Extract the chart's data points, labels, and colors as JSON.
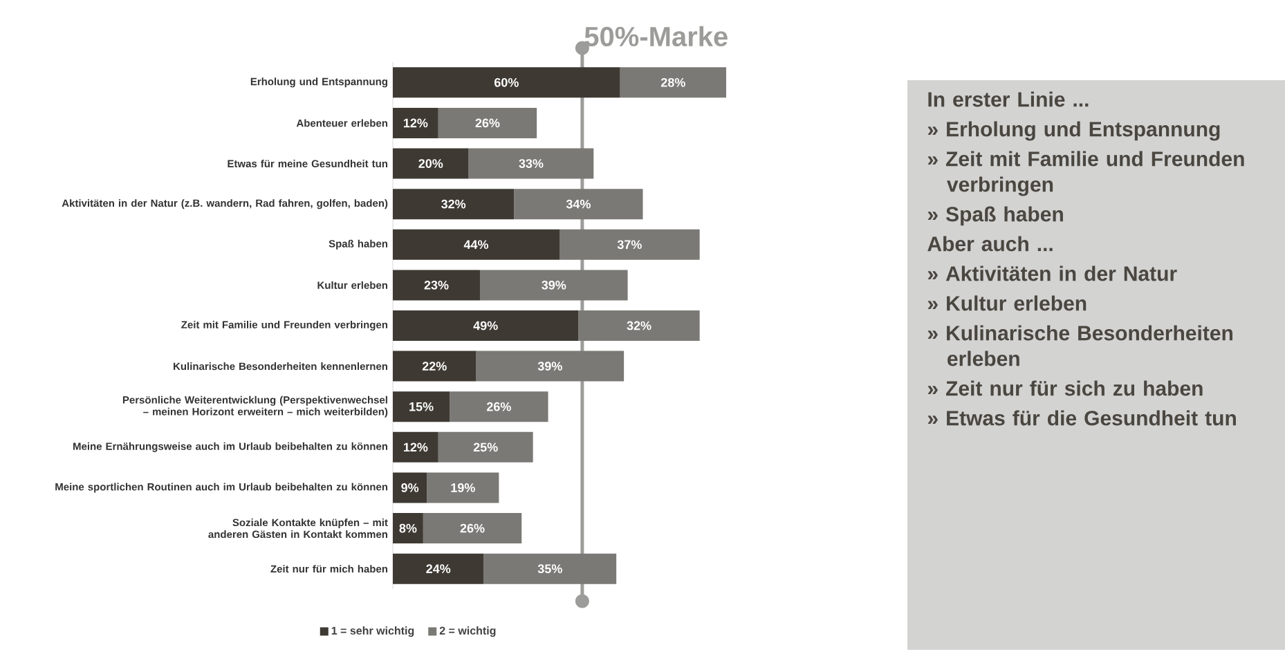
{
  "chart_data": {
    "type": "bar",
    "orientation": "horizontal",
    "stacked": true,
    "categories": [
      "Erholung und Entspannung",
      "Abenteuer erleben",
      "Etwas für meine Gesundheit tun",
      "Aktivitäten in der Natur (z.B. wandern, Rad fahren, golfen, baden)",
      "Spaß haben",
      "Kultur erleben",
      "Zeit mit Familie und Freunden verbringen",
      "Kulinarische Besonderheiten kennenlernen",
      "Persönliche Weiterentwicklung (Perspektivenwechsel – meinen Horizont erweitern – mich weiterbilden)",
      "Meine Ernährungsweise auch im Urlaub beibehalten zu können",
      "Meine sportlichen Routinen auch im Urlaub beibehalten zu können",
      "Soziale Kontakte knüpfen – mit anderen Gästen in Kontakt kommen",
      "Zeit nur für mich haben"
    ],
    "series": [
      {
        "name": "1 = sehr wichtig",
        "color": "#3e3a33",
        "values": [
          60,
          12,
          20,
          32,
          44,
          23,
          49,
          22,
          15,
          12,
          9,
          8,
          24
        ],
        "value_labels": [
          "60%",
          "12%",
          "20%",
          "32%",
          "44%",
          "23%",
          "49%",
          "22%",
          "15%",
          "12%",
          "9%",
          "8%",
          "24%"
        ]
      },
      {
        "name": "2 = wichtig",
        "color": "#7b7975",
        "values": [
          28,
          26,
          33,
          34,
          37,
          39,
          32,
          39,
          26,
          25,
          19,
          26,
          35
        ],
        "value_labels": [
          "28%",
          "26%",
          "33%",
          "34%",
          "37%",
          "39%",
          "32%",
          "39%",
          "26%",
          "25%",
          "19%",
          "26%",
          "35%"
        ]
      }
    ],
    "tick_labels": "y",
    "legend": "bottom",
    "ref_lines": [
      {
        "axis": "x",
        "value": 50,
        "label": "50%-Marke",
        "color": "#9c9c9a"
      }
    ],
    "annotations": [
      "In erster Linie ...",
      "» Erholung und Entspannung",
      "» Zeit mit Familie und Freunden verbringen",
      "» Spaß haben",
      "Aber auch ...",
      "» Aktivitäten in der Natur",
      "» Kultur erleben",
      "» Kulinarische Besonderheiten erleben",
      "» Zeit nur für sich zu haben",
      "» Etwas für die Gesundheit tun"
    ]
  }
}
